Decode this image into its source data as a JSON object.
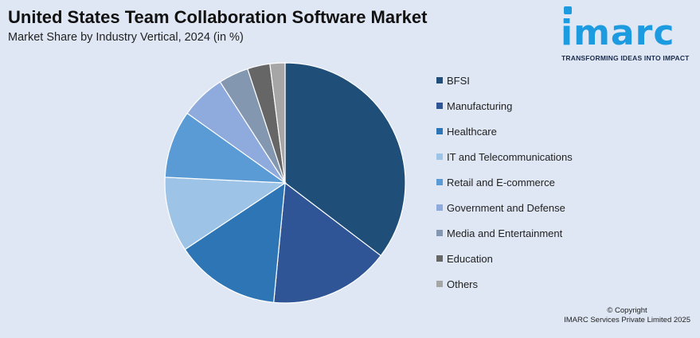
{
  "header": {
    "title": "United States Team Collaboration Software Market",
    "subtitle": "Market Share by Industry Vertical, 2024 (in %)"
  },
  "logo": {
    "word": "imarc",
    "tagline": "TRANSFORMING IDEAS INTO IMPACT",
    "color": "#1d9be0"
  },
  "chart_data": {
    "type": "pie",
    "title": "United States Team Collaboration Software Market",
    "subtitle": "Market Share by Industry Vertical, 2024 (in %)",
    "legend_position": "right",
    "categories": [
      "BFSI",
      "Manufacturing",
      "Healthcare",
      "IT and Telecommunications",
      "Retail and E-commerce",
      "Government and Defense",
      "Media and Entertainment",
      "Education",
      "Others"
    ],
    "values": [
      35,
      16,
      14,
      10,
      9,
      6,
      4,
      3,
      2
    ],
    "colors": [
      "#1f4e79",
      "#2f5597",
      "#2e75b6",
      "#9dc3e6",
      "#5b9bd5",
      "#8faadc",
      "#8497b0",
      "#666666",
      "#a6a6a6"
    ]
  },
  "footer": {
    "copyright_line1": "© Copyright",
    "copyright_line2": "IMARC Services Private Limited 2025"
  }
}
